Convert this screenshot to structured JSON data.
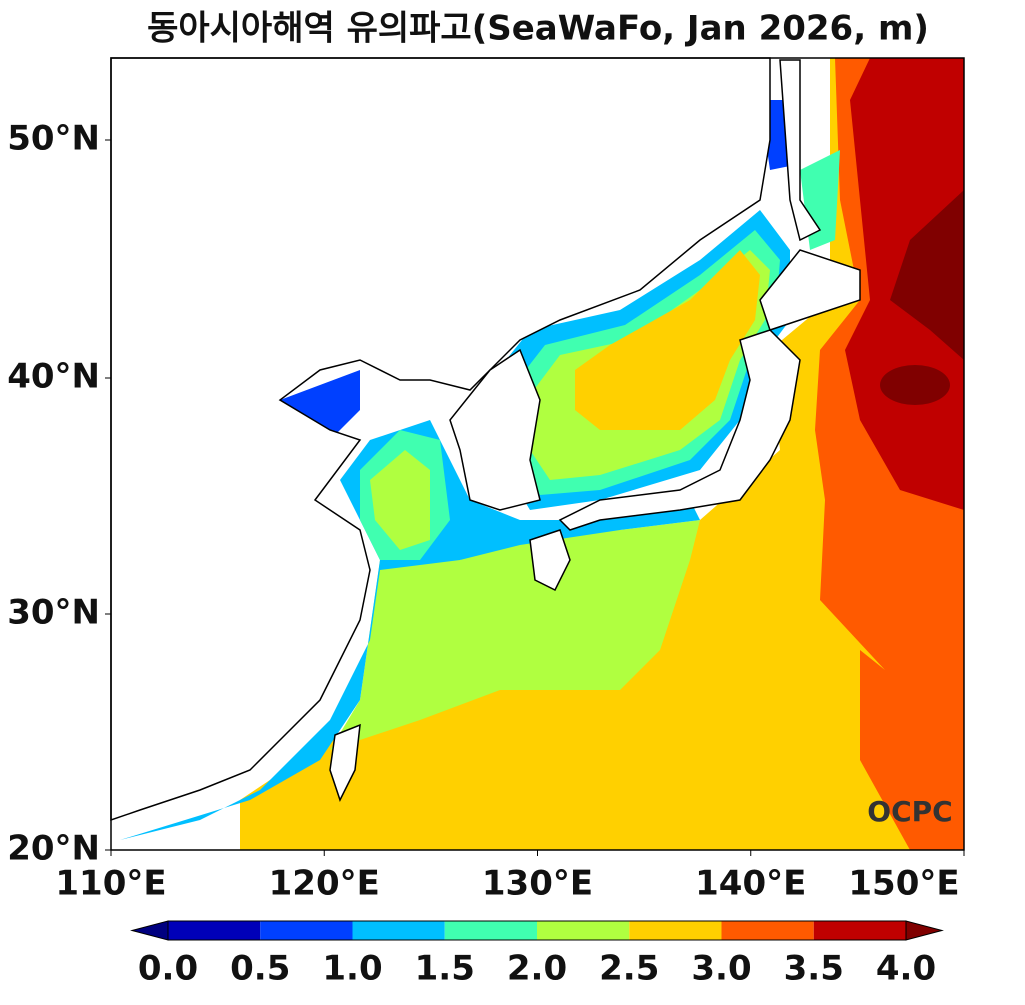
{
  "title": "동아시아해역 유의파고(SeaWaFo, Jan 2026, m)",
  "x_tick_labels": [
    "110°E",
    "120°E",
    "130°E",
    "140°E",
    "150°E"
  ],
  "y_tick_labels": [
    "20°N",
    "30°N",
    "40°N",
    "50°N"
  ],
  "logo": "OCPC",
  "colorbar": {
    "ticks": [
      "0.0",
      "0.5",
      "1.0",
      "1.5",
      "2.0",
      "2.5",
      "3.0",
      "3.5",
      "4.0"
    ],
    "under_color": "#000080",
    "colors": [
      "#0000b8",
      "#0040ff",
      "#00bfff",
      "#40ffb0",
      "#b0ff40",
      "#ffd000",
      "#ff5a00",
      "#c00000"
    ],
    "over_color": "#800000"
  }
}
